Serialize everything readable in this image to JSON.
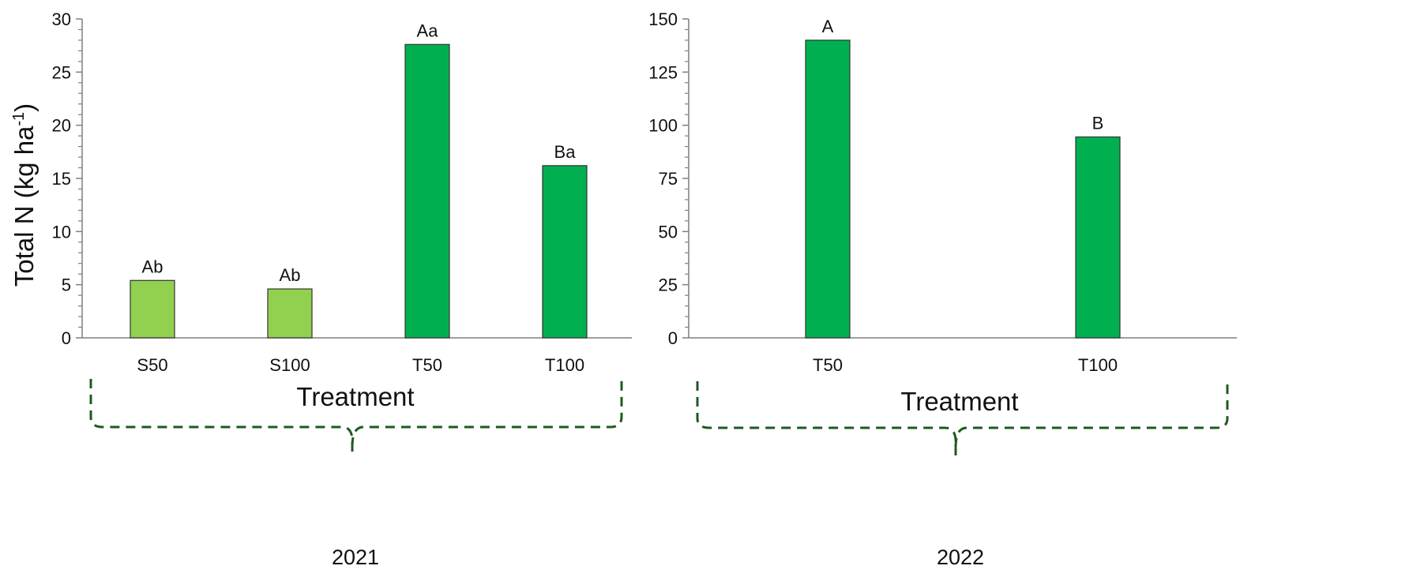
{
  "chart_data": [
    {
      "type": "bar",
      "categories": [
        "S50",
        "S100",
        "T50",
        "T100"
      ],
      "values": [
        5.4,
        4.6,
        27.6,
        16.2
      ],
      "bar_labels": [
        "Ab",
        "Ab",
        "Aa",
        "Ba"
      ],
      "bar_colors": [
        "#92d050",
        "#92d050",
        "#00b050",
        "#00b050"
      ],
      "title": "",
      "xlabel": "Treatment",
      "ylabel_main": "Total N (kg ha",
      "ylabel_sup": "-1",
      "ylabel_close": ")",
      "ylim": [
        0,
        30
      ],
      "yticks": [
        0,
        5,
        10,
        15,
        20,
        25,
        30
      ],
      "group_label": "2021"
    },
    {
      "type": "bar",
      "categories": [
        "T50",
        "T100"
      ],
      "values": [
        140,
        94.5
      ],
      "bar_labels": [
        "A",
        "B"
      ],
      "bar_colors": [
        "#00b050",
        "#00b050"
      ],
      "title": "",
      "xlabel": "Treatment",
      "ylim": [
        0,
        150
      ],
      "yticks": [
        0,
        25,
        50,
        75,
        100,
        125,
        150
      ],
      "group_label": "2022"
    }
  ],
  "colors": {
    "light_green_bar": "#92d050",
    "dark_green_bar": "#00b050",
    "bracket": "#1e5a1e",
    "axis": "#7f7f7f",
    "bar_outline": "#333333"
  }
}
